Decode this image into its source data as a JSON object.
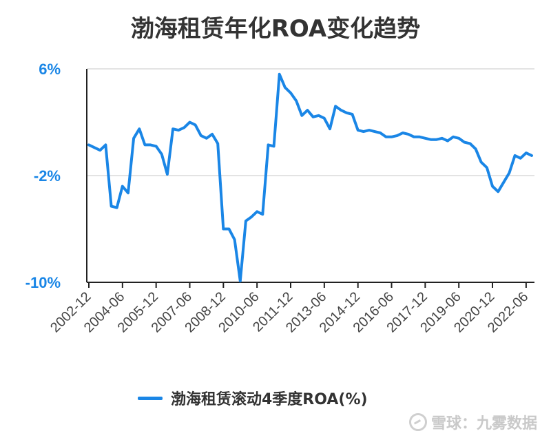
{
  "chart_data": {
    "type": "line",
    "title": "渤海租赁年化ROA变化趋势",
    "ylim": [
      -10,
      6
    ],
    "y_ticks": [
      "6%",
      "-2%",
      "-10%"
    ],
    "y_tick_values": [
      6,
      -2,
      -10
    ],
    "x_tick_labels": [
      "2002-12",
      "2004-06",
      "2005-12",
      "2007-06",
      "2008-12",
      "2010-06",
      "2011-12",
      "2013-06",
      "2014-12",
      "2016-06",
      "2017-12",
      "2019-06",
      "2020-12",
      "2022-06"
    ],
    "grid": true,
    "legend_position": "bottom",
    "series": [
      {
        "name": "渤海租赁滚动4季度ROA(%)",
        "color": "#1a86e6",
        "x": [
          "2002-12",
          "2003-03",
          "2003-06",
          "2003-09",
          "2003-12",
          "2004-03",
          "2004-06",
          "2004-09",
          "2004-12",
          "2005-03",
          "2005-06",
          "2005-09",
          "2005-12",
          "2006-03",
          "2006-06",
          "2006-09",
          "2006-12",
          "2007-03",
          "2007-06",
          "2007-09",
          "2007-12",
          "2008-03",
          "2008-06",
          "2008-09",
          "2008-12",
          "2009-03",
          "2009-06",
          "2009-09",
          "2009-12",
          "2010-03",
          "2010-06",
          "2010-09",
          "2010-12",
          "2011-03",
          "2011-06",
          "2011-09",
          "2011-12",
          "2012-03",
          "2012-06",
          "2012-09",
          "2012-12",
          "2013-03",
          "2013-06",
          "2013-09",
          "2013-12",
          "2014-03",
          "2014-06",
          "2014-09",
          "2014-12",
          "2015-03",
          "2015-06",
          "2015-09",
          "2015-12",
          "2016-03",
          "2016-06",
          "2016-09",
          "2016-12",
          "2017-03",
          "2017-06",
          "2017-09",
          "2017-12",
          "2018-03",
          "2018-06",
          "2018-09",
          "2018-12",
          "2019-03",
          "2019-06",
          "2019-09",
          "2019-12",
          "2020-03",
          "2020-06",
          "2020-09",
          "2020-12",
          "2021-03",
          "2021-06",
          "2021-09",
          "2021-12",
          "2022-03",
          "2022-06",
          "2022-09"
        ],
        "values": [
          0.3,
          0.1,
          -0.1,
          0.3,
          -4.3,
          -4.4,
          -2.8,
          -3.3,
          0.8,
          1.5,
          0.3,
          0.3,
          0.2,
          -0.4,
          -1.9,
          1.5,
          1.4,
          1.6,
          2.0,
          1.8,
          1.0,
          0.8,
          1.1,
          0.4,
          -6.0,
          -6.0,
          -6.8,
          -9.9,
          -5.4,
          -5.1,
          -4.7,
          -4.9,
          0.3,
          0.2,
          5.6,
          4.6,
          4.2,
          3.6,
          2.5,
          2.9,
          2.4,
          2.5,
          2.3,
          1.5,
          3.2,
          2.9,
          2.7,
          2.6,
          1.4,
          1.3,
          1.4,
          1.3,
          1.2,
          0.9,
          0.9,
          1.0,
          1.2,
          1.1,
          0.9,
          0.9,
          0.8,
          0.7,
          0.7,
          0.8,
          0.6,
          0.9,
          0.8,
          0.5,
          0.4,
          0.0,
          -1.0,
          -1.4,
          -2.8,
          -3.2,
          -2.5,
          -1.8,
          -0.5,
          -0.7,
          -0.3,
          -0.5
        ]
      }
    ]
  },
  "watermark": {
    "text": "雪球：九雾数据"
  }
}
